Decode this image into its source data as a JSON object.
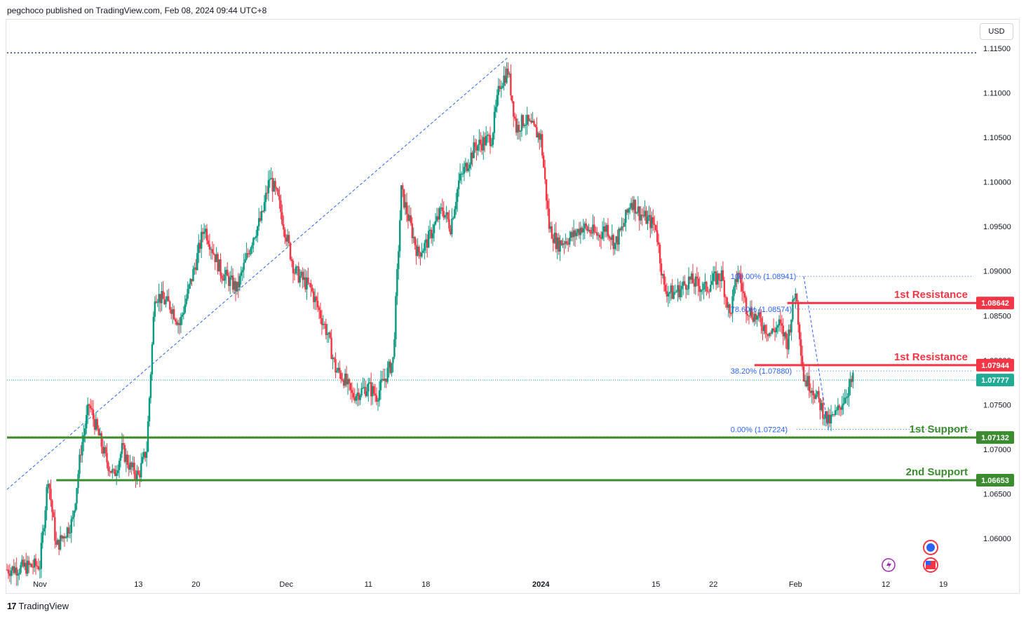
{
  "header": {
    "published": "pegchoco published on TradingView.com, Feb 08, 2024 09:44 UTC+8"
  },
  "currency": "USD",
  "footer": {
    "brand": "TradingView",
    "logo_icon": "tradingview-logo-icon"
  },
  "colors": {
    "up": "#089981",
    "down": "#f23645",
    "resistance": "#f23645",
    "support": "#3a8c2e",
    "fib": "#2962ff",
    "orange_line": "#f7a21b",
    "last_price": "#22ab94"
  },
  "chart_data": {
    "type": "candlestick",
    "title": "",
    "ylim": [
      1.0565,
      1.116
    ],
    "y_ticks": [
      "1.11500",
      "1.11000",
      "1.10500",
      "1.10000",
      "1.09500",
      "1.09000",
      "1.08500",
      "1.08000",
      "1.07500",
      "1.07000",
      "1.06500",
      "1.06000"
    ],
    "x_ticks": [
      {
        "label": "Nov",
        "date": "2023-11-01"
      },
      {
        "label": "13",
        "date": "2023-11-13"
      },
      {
        "label": "20",
        "date": "2023-11-20"
      },
      {
        "label": "Dec",
        "date": "2023-12-01"
      },
      {
        "label": "11",
        "date": "2023-12-11"
      },
      {
        "label": "18",
        "date": "2023-12-18"
      },
      {
        "label": "2024",
        "date": "2024-01-01"
      },
      {
        "label": "15",
        "date": "2024-01-15"
      },
      {
        "label": "22",
        "date": "2024-01-22"
      },
      {
        "label": "Feb",
        "date": "2024-02-01"
      },
      {
        "label": "12",
        "date": "2024-02-12"
      },
      {
        "label": "19",
        "date": "2024-02-19"
      }
    ],
    "price_path": [
      [
        "2023-10-28",
        1.0565
      ],
      [
        "2023-11-01",
        1.057
      ],
      [
        "2023-11-02",
        1.067
      ],
      [
        "2023-11-03",
        1.059
      ],
      [
        "2023-11-05",
        1.062
      ],
      [
        "2023-11-06",
        1.07
      ],
      [
        "2023-11-07",
        1.075
      ],
      [
        "2023-11-08",
        1.072
      ],
      [
        "2023-11-09",
        1.069
      ],
      [
        "2023-11-10",
        1.067
      ],
      [
        "2023-11-11",
        1.07
      ],
      [
        "2023-11-12",
        1.068
      ],
      [
        "2023-11-13",
        1.067
      ],
      [
        "2023-11-14",
        1.07
      ],
      [
        "2023-11-15",
        1.0875
      ],
      [
        "2023-11-17",
        1.086
      ],
      [
        "2023-11-18",
        1.084
      ],
      [
        "2023-11-20",
        1.091
      ],
      [
        "2023-11-21",
        1.095
      ],
      [
        "2023-11-23",
        1.09
      ],
      [
        "2023-11-25",
        1.088
      ],
      [
        "2023-11-27",
        1.094
      ],
      [
        "2023-11-28",
        1.096
      ],
      [
        "2023-11-29",
        1.1005
      ],
      [
        "2023-11-30",
        1.098
      ],
      [
        "2023-12-01",
        1.094
      ],
      [
        "2023-12-02",
        1.09
      ],
      [
        "2023-12-04",
        1.088
      ],
      [
        "2023-12-06",
        1.083
      ],
      [
        "2023-12-07",
        1.079
      ],
      [
        "2023-12-08",
        1.078
      ],
      [
        "2023-12-09",
        1.076
      ],
      [
        "2023-12-11",
        1.077
      ],
      [
        "2023-12-12",
        1.076
      ],
      [
        "2023-12-13",
        1.078
      ],
      [
        "2023-12-14",
        1.08
      ],
      [
        "2023-12-15",
        1.099
      ],
      [
        "2023-12-17",
        1.092
      ],
      [
        "2023-12-18",
        1.093
      ],
      [
        "2023-12-20",
        1.097
      ],
      [
        "2023-12-21",
        1.095
      ],
      [
        "2023-12-22",
        1.1
      ],
      [
        "2023-12-24",
        1.104
      ],
      [
        "2023-12-26",
        1.105
      ],
      [
        "2023-12-27",
        1.111
      ],
      [
        "2023-12-28",
        1.1125
      ],
      [
        "2023-12-29",
        1.106
      ],
      [
        "2023-12-30",
        1.107
      ],
      [
        "2024-01-01",
        1.105
      ],
      [
        "2024-01-02",
        1.095
      ],
      [
        "2024-01-03",
        1.093
      ],
      [
        "2024-01-05",
        1.094
      ],
      [
        "2024-01-06",
        1.095
      ],
      [
        "2024-01-08",
        1.094
      ],
      [
        "2024-01-09",
        1.095
      ],
      [
        "2024-01-10",
        1.093
      ],
      [
        "2024-01-11",
        1.095
      ],
      [
        "2024-01-12",
        1.098
      ],
      [
        "2024-01-13",
        1.0965
      ],
      [
        "2024-01-15",
        1.095
      ],
      [
        "2024-01-16",
        1.088
      ],
      [
        "2024-01-17",
        1.0875
      ],
      [
        "2024-01-18",
        1.088
      ],
      [
        "2024-01-19",
        1.089
      ],
      [
        "2024-01-21",
        1.088
      ],
      [
        "2024-01-22",
        1.089
      ],
      [
        "2024-01-23",
        1.0895
      ],
      [
        "2024-01-24",
        1.085
      ],
      [
        "2024-01-25",
        1.09
      ],
      [
        "2024-01-26",
        1.086
      ],
      [
        "2024-01-27",
        1.085
      ],
      [
        "2024-01-29",
        1.083
      ],
      [
        "2024-01-30",
        1.084
      ],
      [
        "2024-01-31",
        1.082
      ],
      [
        "2024-02-01",
        1.088
      ],
      [
        "2024-02-02",
        1.078
      ],
      [
        "2024-02-03",
        1.077
      ],
      [
        "2024-02-05",
        1.073
      ],
      [
        "2024-02-06",
        1.074
      ],
      [
        "2024-02-07",
        1.076
      ],
      [
        "2024-02-08",
        1.0778
      ]
    ],
    "levels": [
      {
        "label": "1st Resistance",
        "value": 1.08642,
        "value_label": "1.08642",
        "color": "#f23645",
        "from": "2024-01-31"
      },
      {
        "label": "1st Resistance",
        "value": 1.07944,
        "value_label": "1.07944",
        "color": "#f23645",
        "from": "2024-01-27"
      },
      {
        "label": "1st Support",
        "value": 1.07132,
        "value_label": "1.07132",
        "color": "#3a8c2e",
        "from": "2023-10-28"
      },
      {
        "label": "2nd Support",
        "value": 1.06653,
        "value_label": "1.06653",
        "color": "#3a8c2e",
        "from": "2023-11-03"
      }
    ],
    "last_price": {
      "value": 1.07777,
      "value_label": "1.07777"
    },
    "top_dotted_level": 1.1145,
    "fibonacci": [
      {
        "label": "100.00% (1.08941)",
        "value": 1.08941
      },
      {
        "label": "78.60% (1.08574)",
        "value": 1.08574
      },
      {
        "label": "38.20% (1.07880)",
        "value": 1.0788
      },
      {
        "label": "0.00% (1.07224)",
        "value": 1.07224
      }
    ],
    "trendline": {
      "from": [
        "2023-10-28",
        1.0655
      ],
      "to": [
        "2023-12-28",
        1.114
      ]
    },
    "event_icons": [
      "flash-icon",
      "globe-icon",
      "us-flag-icon"
    ]
  }
}
